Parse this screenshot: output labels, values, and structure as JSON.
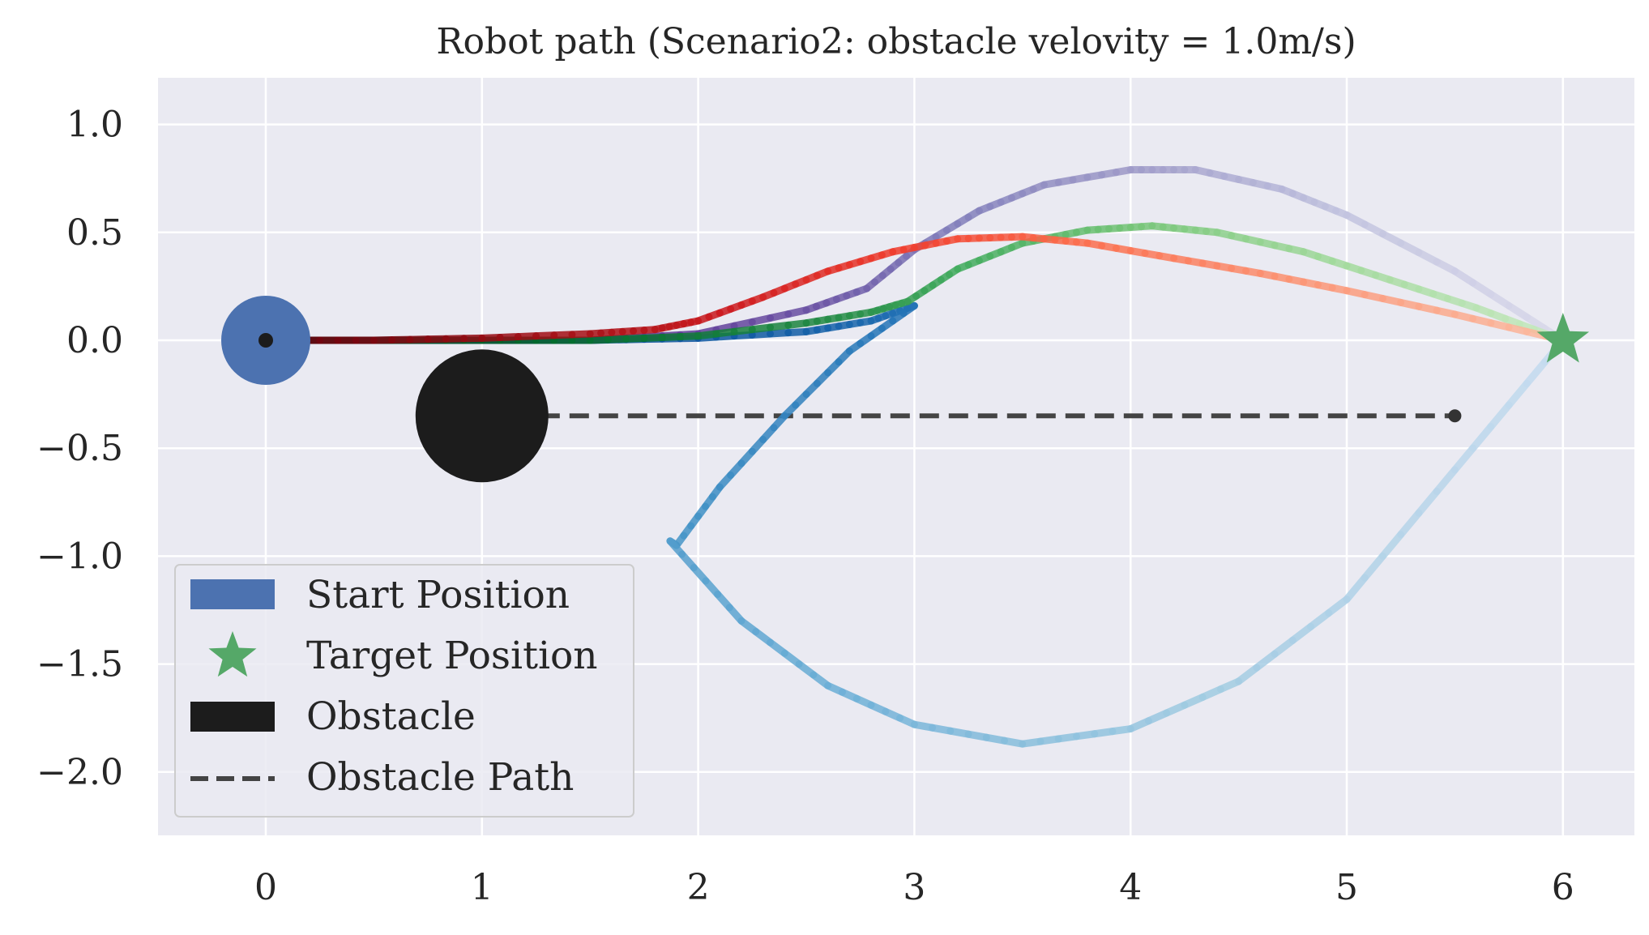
{
  "chart_data": {
    "type": "line",
    "title": "Robot path (Scenario2: obstacle velovity = 1.0m/s)",
    "xlabel": "",
    "ylabel": "",
    "xlim": [
      -0.5,
      6.3
    ],
    "ylim": [
      -2.3,
      1.22
    ],
    "xticks": [
      "0",
      "1",
      "2",
      "3",
      "4",
      "5",
      "6"
    ],
    "yticks": [
      "1.0",
      "0.5",
      "0.0",
      "−0.5",
      "−1.0",
      "−1.5",
      "−2.0"
    ],
    "grid": true,
    "legend": {
      "position": "lower-left",
      "entries": [
        "Start Position",
        "Target Position",
        "Obstacle",
        "Obstacle Path"
      ]
    },
    "start_position": {
      "x": 0,
      "y": 0,
      "color": "#4c72b0"
    },
    "target_position": {
      "x": 6,
      "y": 0,
      "color": "#55a868"
    },
    "obstacle": {
      "x": 1,
      "y": -0.35,
      "color": "#1c1c1c"
    },
    "obstacle_path": {
      "x": [
        1,
        5.5
      ],
      "y": [
        -0.35,
        -0.35
      ],
      "color": "#444444"
    },
    "series": [
      {
        "colormap": "Blues",
        "x": [
          0,
          0.5,
          1.0,
          1.5,
          2.0,
          2.5,
          2.8,
          3.0,
          2.7,
          2.4,
          2.1,
          1.9,
          1.87,
          2.2,
          2.6,
          3.0,
          3.5,
          4.0,
          4.5,
          5.0,
          5.5,
          6.0
        ],
        "y": [
          0,
          0,
          0,
          0,
          0.01,
          0.04,
          0.09,
          0.16,
          -0.05,
          -0.35,
          -0.68,
          -0.95,
          -0.93,
          -1.3,
          -1.6,
          -1.78,
          -1.87,
          -1.8,
          -1.58,
          -1.2,
          -0.6,
          0
        ]
      },
      {
        "colormap": "Purples",
        "x": [
          0,
          0.5,
          1.0,
          1.5,
          2.0,
          2.5,
          2.78,
          3.0,
          3.3,
          3.6,
          4.0,
          4.3,
          4.7,
          5.0,
          5.5,
          6.0
        ],
        "y": [
          0,
          0,
          0,
          0,
          0.03,
          0.14,
          0.24,
          0.42,
          0.6,
          0.72,
          0.79,
          0.79,
          0.7,
          0.58,
          0.32,
          0
        ]
      },
      {
        "colormap": "Greens",
        "x": [
          0,
          0.5,
          1.0,
          1.5,
          2.0,
          2.5,
          2.8,
          2.97,
          3.2,
          3.5,
          3.8,
          4.1,
          4.4,
          4.8,
          5.2,
          5.6,
          6.0
        ],
        "y": [
          0,
          0,
          0,
          0,
          0.02,
          0.08,
          0.13,
          0.18,
          0.33,
          0.45,
          0.51,
          0.53,
          0.5,
          0.41,
          0.28,
          0.15,
          0
        ]
      },
      {
        "colormap": "Reds",
        "x": [
          0,
          0.5,
          1.0,
          1.5,
          1.8,
          2.0,
          2.3,
          2.6,
          2.9,
          3.2,
          3.5,
          3.8,
          4.2,
          4.6,
          5.0,
          5.5,
          6.0
        ],
        "y": [
          0,
          0,
          0.01,
          0.03,
          0.05,
          0.09,
          0.2,
          0.32,
          0.41,
          0.47,
          0.48,
          0.45,
          0.38,
          0.31,
          0.23,
          0.12,
          0
        ]
      }
    ]
  }
}
